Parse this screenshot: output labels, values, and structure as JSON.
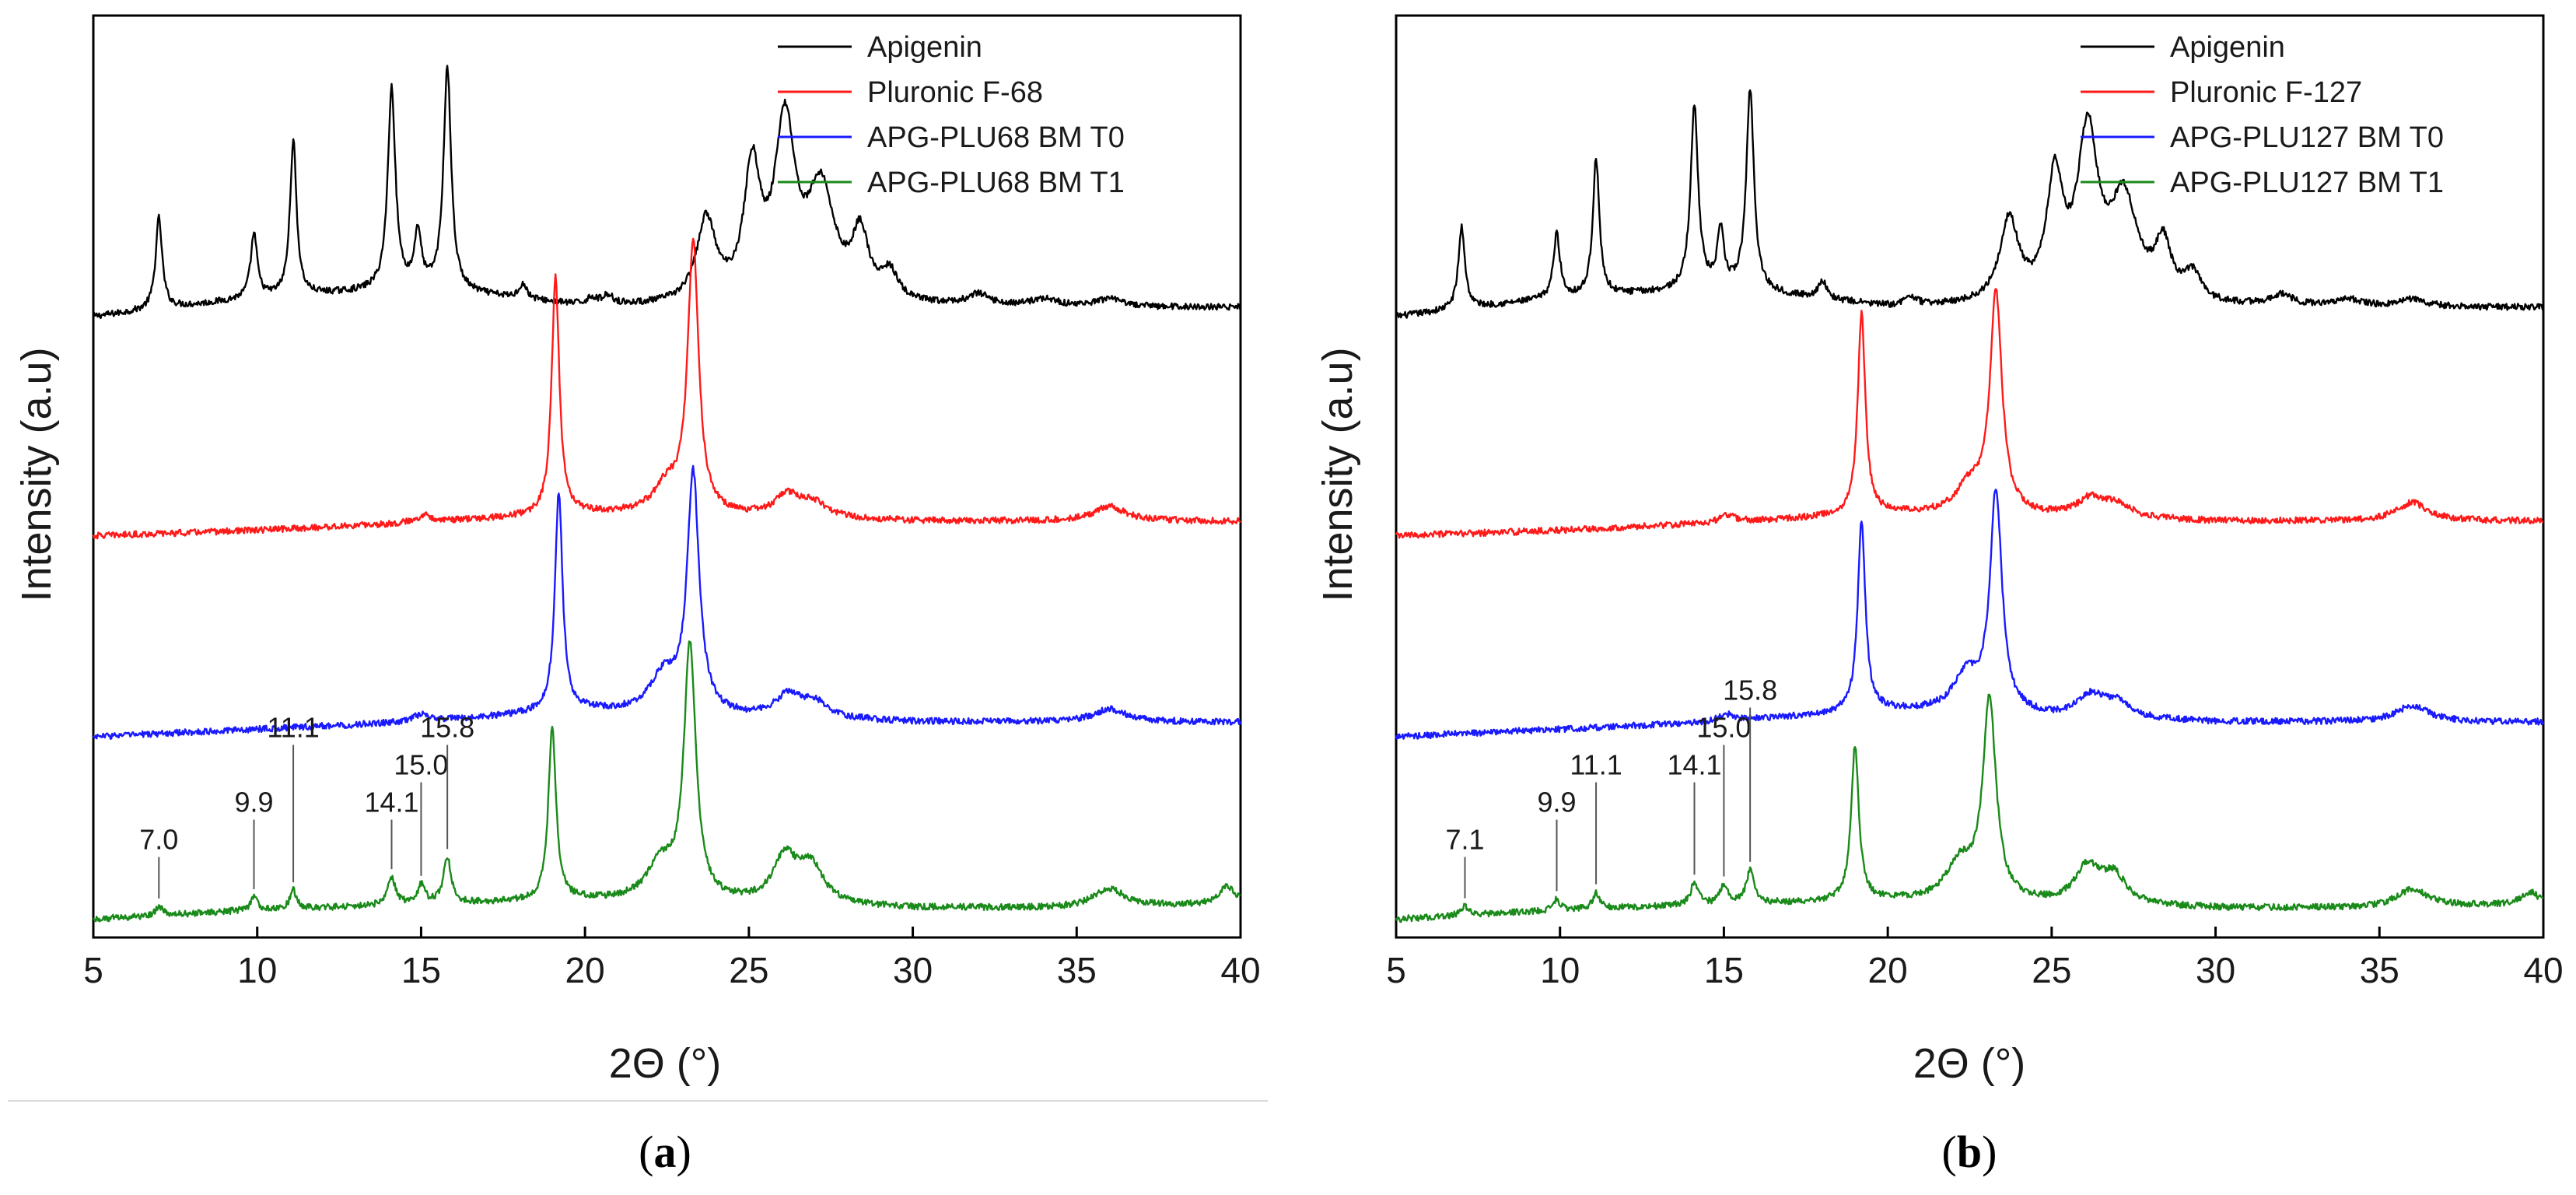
{
  "figure": {
    "panel_labels": [
      {
        "open": "(",
        "letter": "a",
        "close": ")"
      },
      {
        "open": "(",
        "letter": "b",
        "close": ")"
      }
    ]
  },
  "colors": {
    "apigenin": "#000000",
    "pluronic": "#ff1a1a",
    "bm_t0": "#1a1aff",
    "bm_t1": "#1a8a1a",
    "axis": "#000000"
  },
  "chart_data": [
    {
      "type": "line",
      "panel": "a",
      "xlabel": "2Θ (°)",
      "ylabel": "Intensity (a.u)",
      "xlim": [
        5,
        40
      ],
      "xticks": [
        5,
        10,
        15,
        20,
        25,
        30,
        35,
        40
      ],
      "legend_position": "top-right",
      "series": [
        {
          "name": "Apigenin",
          "color_key": "apigenin",
          "offset": 3.3,
          "baseline": [
            [
              5,
              0
            ],
            [
              10,
              0.1
            ],
            [
              15,
              0.15
            ],
            [
              20,
              0.05
            ],
            [
              25,
              0.05
            ],
            [
              30,
              0.05
            ],
            [
              35,
              0.05
            ],
            [
              40,
              0.05
            ]
          ],
          "peaks": [
            {
              "x": 7.0,
              "h": 0.5,
              "w": 0.12
            },
            {
              "x": 9.9,
              "h": 0.35,
              "w": 0.12
            },
            {
              "x": 11.1,
              "h": 0.85,
              "w": 0.12
            },
            {
              "x": 14.1,
              "h": 1.1,
              "w": 0.14
            },
            {
              "x": 14.9,
              "h": 0.3,
              "w": 0.12
            },
            {
              "x": 15.8,
              "h": 1.22,
              "w": 0.14
            },
            {
              "x": 18.1,
              "h": 0.08,
              "w": 0.15
            },
            {
              "x": 20.2,
              "h": 0.04,
              "w": 0.2
            },
            {
              "x": 20.7,
              "h": 0.05,
              "w": 0.2
            },
            {
              "x": 23.7,
              "h": 0.45,
              "w": 0.35
            },
            {
              "x": 25.1,
              "h": 0.7,
              "w": 0.3
            },
            {
              "x": 26.1,
              "h": 0.95,
              "w": 0.38
            },
            {
              "x": 27.2,
              "h": 0.6,
              "w": 0.5
            },
            {
              "x": 28.4,
              "h": 0.35,
              "w": 0.3
            },
            {
              "x": 29.3,
              "h": 0.15,
              "w": 0.3
            },
            {
              "x": 32.0,
              "h": 0.06,
              "w": 0.4
            },
            {
              "x": 34.0,
              "h": 0.04,
              "w": 0.5
            },
            {
              "x": 36.0,
              "h": 0.04,
              "w": 0.5
            }
          ]
        },
        {
          "name": "Pluronic F-68",
          "color_key": "pluronic",
          "offset": 2.1,
          "baseline": [
            [
              5,
              0
            ],
            [
              10,
              0.03
            ],
            [
              15,
              0.07
            ],
            [
              20,
              0.12
            ],
            [
              25,
              0.1
            ],
            [
              30,
              0.08
            ],
            [
              35,
              0.08
            ],
            [
              40,
              0.08
            ]
          ],
          "peaks": [
            {
              "x": 19.1,
              "h": 1.3,
              "w": 0.14
            },
            {
              "x": 23.3,
              "h": 1.48,
              "w": 0.2
            },
            {
              "x": 22.5,
              "h": 0.15,
              "w": 0.5
            },
            {
              "x": 26.2,
              "h": 0.12,
              "w": 0.5
            },
            {
              "x": 27.0,
              "h": 0.07,
              "w": 0.5
            },
            {
              "x": 36.0,
              "h": 0.08,
              "w": 0.6
            },
            {
              "x": 15.1,
              "h": 0.04,
              "w": 0.3
            }
          ]
        },
        {
          "name": "APG-PLU68 BM T0",
          "color_key": "bm_t0",
          "offset": 1.0,
          "baseline": [
            [
              5,
              0
            ],
            [
              10,
              0.04
            ],
            [
              15,
              0.08
            ],
            [
              20,
              0.14
            ],
            [
              25,
              0.1
            ],
            [
              30,
              0.08
            ],
            [
              35,
              0.08
            ],
            [
              40,
              0.08
            ]
          ],
          "peaks": [
            {
              "x": 19.2,
              "h": 1.2,
              "w": 0.14
            },
            {
              "x": 23.3,
              "h": 1.3,
              "w": 0.22
            },
            {
              "x": 22.4,
              "h": 0.2,
              "w": 0.5
            },
            {
              "x": 26.2,
              "h": 0.12,
              "w": 0.5
            },
            {
              "x": 27.0,
              "h": 0.08,
              "w": 0.5
            },
            {
              "x": 36.0,
              "h": 0.07,
              "w": 0.6
            },
            {
              "x": 15.0,
              "h": 0.04,
              "w": 0.3
            }
          ]
        },
        {
          "name": "APG-PLU68 BM T1",
          "color_key": "bm_t1",
          "offset": 0.0,
          "baseline": [
            [
              5,
              0
            ],
            [
              10,
              0.05
            ],
            [
              15,
              0.08
            ],
            [
              20,
              0.1
            ],
            [
              25,
              0.08
            ],
            [
              30,
              0.06
            ],
            [
              35,
              0.06
            ],
            [
              40,
              0.08
            ]
          ],
          "peaks": [
            {
              "x": 7.0,
              "h": 0.05,
              "w": 0.12
            },
            {
              "x": 9.9,
              "h": 0.07,
              "w": 0.12
            },
            {
              "x": 11.1,
              "h": 0.1,
              "w": 0.12
            },
            {
              "x": 14.1,
              "h": 0.15,
              "w": 0.14
            },
            {
              "x": 15.0,
              "h": 0.1,
              "w": 0.14
            },
            {
              "x": 15.8,
              "h": 0.25,
              "w": 0.14
            },
            {
              "x": 19.0,
              "h": 0.95,
              "w": 0.14
            },
            {
              "x": 23.2,
              "h": 1.38,
              "w": 0.22
            },
            {
              "x": 22.3,
              "h": 0.2,
              "w": 0.5
            },
            {
              "x": 26.1,
              "h": 0.25,
              "w": 0.45
            },
            {
              "x": 26.9,
              "h": 0.2,
              "w": 0.45
            },
            {
              "x": 36.0,
              "h": 0.1,
              "w": 0.6
            },
            {
              "x": 39.6,
              "h": 0.1,
              "w": 0.3
            }
          ]
        }
      ],
      "peak_annotations": [
        {
          "x": 7.0,
          "label": "7.0",
          "row": 0
        },
        {
          "x": 9.9,
          "label": "9.9",
          "row": 1
        },
        {
          "x": 11.1,
          "label": "11.1",
          "row": 3
        },
        {
          "x": 14.1,
          "label": "14.1",
          "row": 1
        },
        {
          "x": 15.0,
          "label": "15.0",
          "row": 2
        },
        {
          "x": 15.8,
          "label": "15.8",
          "row": 3
        }
      ]
    },
    {
      "type": "line",
      "panel": "b",
      "xlabel": "2Θ (°)",
      "ylabel": "Intensity (a.u)",
      "xlim": [
        5,
        40
      ],
      "xticks": [
        5,
        10,
        15,
        20,
        25,
        30,
        35,
        40
      ],
      "legend_position": "top-right",
      "series": [
        {
          "name": "Apigenin",
          "color_key": "apigenin",
          "offset": 3.3,
          "baseline": [
            [
              5,
              0
            ],
            [
              10,
              0.1
            ],
            [
              15,
              0.15
            ],
            [
              20,
              0.05
            ],
            [
              25,
              0.05
            ],
            [
              30,
              0.05
            ],
            [
              35,
              0.05
            ],
            [
              40,
              0.05
            ]
          ],
          "peaks": [
            {
              "x": 7.0,
              "h": 0.45,
              "w": 0.12
            },
            {
              "x": 9.9,
              "h": 0.35,
              "w": 0.12
            },
            {
              "x": 11.1,
              "h": 0.75,
              "w": 0.12
            },
            {
              "x": 14.1,
              "h": 1.0,
              "w": 0.14
            },
            {
              "x": 14.9,
              "h": 0.3,
              "w": 0.12
            },
            {
              "x": 15.8,
              "h": 1.1,
              "w": 0.14
            },
            {
              "x": 18.0,
              "h": 0.1,
              "w": 0.15
            },
            {
              "x": 20.7,
              "h": 0.05,
              "w": 0.2
            },
            {
              "x": 23.7,
              "h": 0.45,
              "w": 0.35
            },
            {
              "x": 25.1,
              "h": 0.65,
              "w": 0.3
            },
            {
              "x": 26.1,
              "h": 0.9,
              "w": 0.38
            },
            {
              "x": 27.2,
              "h": 0.55,
              "w": 0.5
            },
            {
              "x": 28.4,
              "h": 0.3,
              "w": 0.3
            },
            {
              "x": 29.3,
              "h": 0.15,
              "w": 0.3
            },
            {
              "x": 32.0,
              "h": 0.06,
              "w": 0.4
            },
            {
              "x": 34.0,
              "h": 0.04,
              "w": 0.5
            },
            {
              "x": 36.0,
              "h": 0.04,
              "w": 0.5
            }
          ]
        },
        {
          "name": "Pluronic F-127",
          "color_key": "pluronic",
          "offset": 2.1,
          "baseline": [
            [
              5,
              0
            ],
            [
              10,
              0.03
            ],
            [
              15,
              0.07
            ],
            [
              20,
              0.12
            ],
            [
              25,
              0.1
            ],
            [
              30,
              0.08
            ],
            [
              35,
              0.08
            ],
            [
              40,
              0.08
            ]
          ],
          "peaks": [
            {
              "x": 19.2,
              "h": 1.1,
              "w": 0.14
            },
            {
              "x": 23.3,
              "h": 1.2,
              "w": 0.22
            },
            {
              "x": 22.5,
              "h": 0.15,
              "w": 0.5
            },
            {
              "x": 26.2,
              "h": 0.1,
              "w": 0.5
            },
            {
              "x": 27.0,
              "h": 0.07,
              "w": 0.5
            },
            {
              "x": 36.0,
              "h": 0.1,
              "w": 0.6
            },
            {
              "x": 15.1,
              "h": 0.04,
              "w": 0.3
            }
          ]
        },
        {
          "name": "APG-PLU127 BM T0",
          "color_key": "bm_t0",
          "offset": 1.0,
          "baseline": [
            [
              5,
              0
            ],
            [
              10,
              0.04
            ],
            [
              15,
              0.08
            ],
            [
              20,
              0.14
            ],
            [
              25,
              0.1
            ],
            [
              30,
              0.08
            ],
            [
              35,
              0.08
            ],
            [
              40,
              0.08
            ]
          ],
          "peaks": [
            {
              "x": 19.2,
              "h": 1.05,
              "w": 0.14
            },
            {
              "x": 23.3,
              "h": 1.2,
              "w": 0.22
            },
            {
              "x": 22.4,
              "h": 0.2,
              "w": 0.5
            },
            {
              "x": 26.2,
              "h": 0.12,
              "w": 0.5
            },
            {
              "x": 27.0,
              "h": 0.08,
              "w": 0.5
            },
            {
              "x": 36.0,
              "h": 0.09,
              "w": 0.6
            },
            {
              "x": 15.1,
              "h": 0.04,
              "w": 0.3
            }
          ]
        },
        {
          "name": "APG-PLU127 BM T1",
          "color_key": "bm_t1",
          "offset": 0.0,
          "baseline": [
            [
              5,
              0
            ],
            [
              10,
              0.05
            ],
            [
              15,
              0.08
            ],
            [
              20,
              0.1
            ],
            [
              25,
              0.08
            ],
            [
              30,
              0.06
            ],
            [
              35,
              0.06
            ],
            [
              40,
              0.08
            ]
          ],
          "peaks": [
            {
              "x": 7.1,
              "h": 0.05,
              "w": 0.12
            },
            {
              "x": 9.9,
              "h": 0.06,
              "w": 0.12
            },
            {
              "x": 11.1,
              "h": 0.09,
              "w": 0.12
            },
            {
              "x": 14.1,
              "h": 0.12,
              "w": 0.14
            },
            {
              "x": 15.0,
              "h": 0.1,
              "w": 0.14
            },
            {
              "x": 15.8,
              "h": 0.18,
              "w": 0.14
            },
            {
              "x": 19.0,
              "h": 0.85,
              "w": 0.14
            },
            {
              "x": 23.1,
              "h": 1.1,
              "w": 0.24
            },
            {
              "x": 22.2,
              "h": 0.2,
              "w": 0.5
            },
            {
              "x": 26.1,
              "h": 0.2,
              "w": 0.45
            },
            {
              "x": 26.9,
              "h": 0.15,
              "w": 0.45
            },
            {
              "x": 36.0,
              "h": 0.1,
              "w": 0.6
            },
            {
              "x": 39.6,
              "h": 0.07,
              "w": 0.3
            }
          ]
        }
      ],
      "peak_annotations": [
        {
          "x": 7.1,
          "label": "7.1",
          "row": 0
        },
        {
          "x": 9.9,
          "label": "9.9",
          "row": 1
        },
        {
          "x": 11.1,
          "label": "11.1",
          "row": 2
        },
        {
          "x": 14.1,
          "label": "14.1",
          "row": 2
        },
        {
          "x": 15.0,
          "label": "15.0",
          "row": 3
        },
        {
          "x": 15.8,
          "label": "15.8",
          "row": 4
        }
      ]
    }
  ]
}
